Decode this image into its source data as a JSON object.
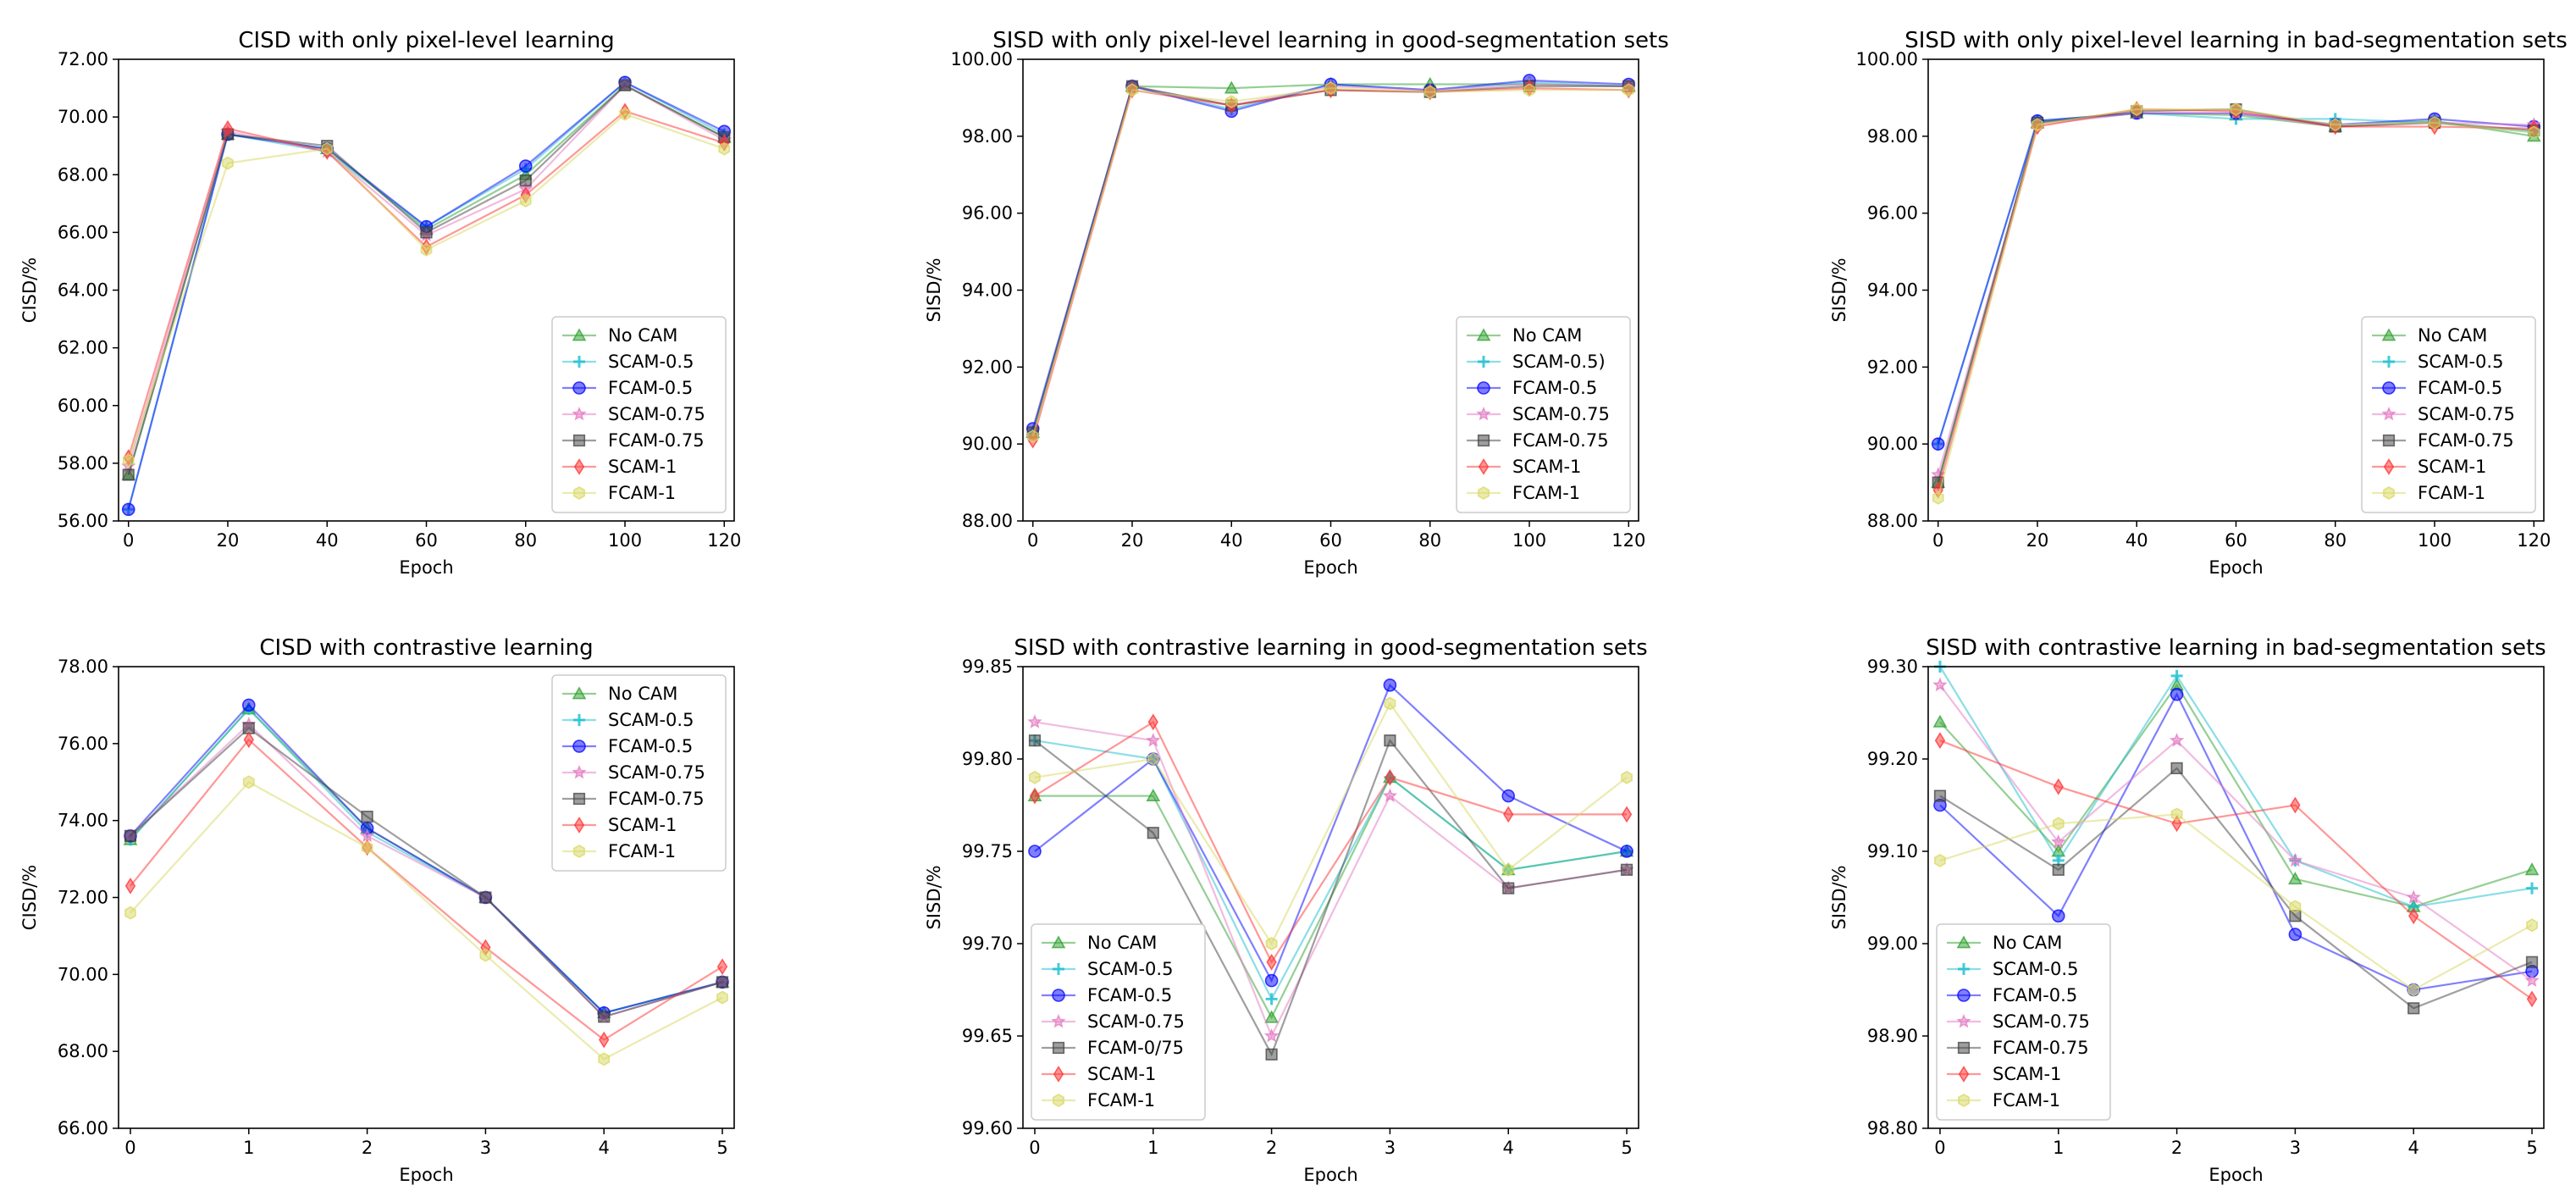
{
  "colors": {
    "No CAM": "#2ca02c",
    "SCAM-0.5": "#17becf",
    "FCAM-0.5": "#0000ff",
    "SCAM-0.75": "#e377c2",
    "FCAM-0.75": "#404040",
    "SCAM-1": "#ff3030",
    "FCAM-1": "#d8d860"
  },
  "chart_data": [
    {
      "type": "line",
      "title": "CISD with only pixel-level learning",
      "xlabel": "Epoch",
      "ylabel": "CISD/%",
      "x": [
        0,
        20,
        40,
        60,
        80,
        100,
        120
      ],
      "xlim": [
        -2,
        122
      ],
      "ylim": [
        56,
        72
      ],
      "yticks": [
        "56.00",
        "58.00",
        "60.00",
        "62.00",
        "64.00",
        "66.00",
        "68.00",
        "70.00",
        "72.00"
      ],
      "xticks": [
        "0",
        "20",
        "40",
        "60",
        "80",
        "100",
        "120"
      ],
      "legend": "lower-right",
      "series": [
        {
          "name": "No CAM",
          "marker": "triangle",
          "values": [
            57.6,
            69.4,
            68.9,
            66.1,
            68.0,
            71.1,
            69.3
          ]
        },
        {
          "name": "SCAM-0.5",
          "marker": "plus",
          "values": [
            56.4,
            69.4,
            68.8,
            66.2,
            68.2,
            71.2,
            69.4
          ]
        },
        {
          "name": "FCAM-0.5",
          "marker": "circle",
          "values": [
            56.4,
            69.4,
            68.9,
            66.2,
            68.3,
            71.2,
            69.5
          ]
        },
        {
          "name": "SCAM-0.75",
          "marker": "star",
          "values": [
            57.9,
            69.5,
            68.8,
            65.9,
            67.5,
            71.1,
            69.2
          ]
        },
        {
          "name": "FCAM-0.75",
          "marker": "square",
          "values": [
            57.6,
            69.4,
            69.0,
            66.0,
            67.8,
            71.1,
            69.3
          ]
        },
        {
          "name": "SCAM-1",
          "marker": "diamond",
          "values": [
            58.2,
            69.6,
            68.8,
            65.5,
            67.3,
            70.2,
            69.1
          ]
        },
        {
          "name": "FCAM-1",
          "marker": "hexagon",
          "values": [
            58.1,
            68.4,
            68.9,
            65.4,
            67.1,
            70.1,
            68.9
          ]
        }
      ]
    },
    {
      "type": "line",
      "title": "SISD with only pixel-level learning in good-segmentation sets",
      "xlabel": "Epoch",
      "ylabel": "SISD/%",
      "x": [
        0,
        20,
        40,
        60,
        80,
        100,
        120
      ],
      "xlim": [
        -2,
        122
      ],
      "ylim": [
        88,
        100
      ],
      "yticks": [
        "88.00",
        "90.00",
        "92.00",
        "94.00",
        "96.00",
        "98.00",
        "100.00"
      ],
      "xticks": [
        "0",
        "20",
        "40",
        "60",
        "80",
        "100",
        "120"
      ],
      "legend": "lower-right",
      "series": [
        {
          "name": "No CAM",
          "marker": "triangle",
          "values": [
            90.3,
            99.3,
            99.25,
            99.35,
            99.35,
            99.35,
            99.3
          ]
        },
        {
          "name": "SCAM-0.5)",
          "color_key": "SCAM-0.5",
          "marker": "plus",
          "values": [
            90.3,
            99.3,
            98.7,
            99.35,
            99.2,
            99.4,
            99.3
          ]
        },
        {
          "name": "FCAM-0.5",
          "marker": "circle",
          "values": [
            90.4,
            99.3,
            98.65,
            99.35,
            99.2,
            99.45,
            99.35
          ]
        },
        {
          "name": "SCAM-0.75",
          "marker": "star",
          "values": [
            90.2,
            99.3,
            98.8,
            99.3,
            99.2,
            99.35,
            99.3
          ]
        },
        {
          "name": "FCAM-0.75",
          "marker": "square",
          "values": [
            90.3,
            99.3,
            98.8,
            99.2,
            99.15,
            99.3,
            99.3
          ]
        },
        {
          "name": "SCAM-1",
          "marker": "diamond",
          "values": [
            90.1,
            99.2,
            98.8,
            99.2,
            99.15,
            99.25,
            99.2
          ]
        },
        {
          "name": "FCAM-1",
          "marker": "hexagon",
          "values": [
            90.2,
            99.2,
            98.9,
            99.25,
            99.15,
            99.2,
            99.2
          ]
        }
      ]
    },
    {
      "type": "line",
      "title": "SISD with only pixel-level learning in bad-segmentation sets",
      "xlabel": "Epoch",
      "ylabel": "SISD/%",
      "x": [
        0,
        20,
        40,
        60,
        80,
        100,
        120
      ],
      "xlim": [
        -2,
        122
      ],
      "ylim": [
        88,
        100
      ],
      "yticks": [
        "88.00",
        "90.00",
        "92.00",
        "94.00",
        "96.00",
        "98.00",
        "100.00"
      ],
      "xticks": [
        "0",
        "20",
        "40",
        "60",
        "80",
        "100",
        "120"
      ],
      "legend": "lower-right",
      "series": [
        {
          "name": "No CAM",
          "marker": "triangle",
          "values": [
            89.0,
            98.35,
            98.6,
            98.55,
            98.25,
            98.4,
            98.0
          ]
        },
        {
          "name": "SCAM-0.5",
          "marker": "plus",
          "values": [
            90.0,
            98.4,
            98.6,
            98.45,
            98.45,
            98.35,
            98.1
          ]
        },
        {
          "name": "FCAM-0.5",
          "marker": "circle",
          "values": [
            90.0,
            98.4,
            98.6,
            98.6,
            98.3,
            98.45,
            98.25
          ]
        },
        {
          "name": "SCAM-0.75",
          "marker": "star",
          "values": [
            89.2,
            98.3,
            98.6,
            98.6,
            98.25,
            98.35,
            98.3
          ]
        },
        {
          "name": "FCAM-0.75",
          "marker": "square",
          "values": [
            89.0,
            98.35,
            98.65,
            98.7,
            98.25,
            98.35,
            98.15
          ]
        },
        {
          "name": "SCAM-1",
          "marker": "diamond",
          "values": [
            88.8,
            98.25,
            98.7,
            98.65,
            98.25,
            98.25,
            98.2
          ]
        },
        {
          "name": "FCAM-1",
          "marker": "hexagon",
          "values": [
            88.6,
            98.3,
            98.7,
            98.7,
            98.3,
            98.35,
            98.1
          ]
        }
      ]
    },
    {
      "type": "line",
      "title": "CISD with contrastive learning",
      "xlabel": "Epoch",
      "ylabel": "CISD/%",
      "x": [
        0,
        1,
        2,
        3,
        4,
        5
      ],
      "xlim": [
        -0.1,
        5.1
      ],
      "ylim": [
        66,
        78
      ],
      "yticks": [
        "66.00",
        "68.00",
        "70.00",
        "72.00",
        "74.00",
        "76.00",
        "78.00"
      ],
      "xticks": [
        "0",
        "1",
        "2",
        "3",
        "4",
        "5"
      ],
      "legend": "upper-right",
      "series": [
        {
          "name": "No CAM",
          "marker": "triangle",
          "values": [
            73.5,
            76.9,
            73.8,
            72.0,
            69.0,
            69.8
          ]
        },
        {
          "name": "SCAM-0.5",
          "marker": "plus",
          "values": [
            73.5,
            76.9,
            73.7,
            72.0,
            69.0,
            69.8
          ]
        },
        {
          "name": "FCAM-0.5",
          "marker": "circle",
          "values": [
            73.6,
            77.0,
            73.8,
            72.0,
            69.0,
            69.8
          ]
        },
        {
          "name": "SCAM-0.75",
          "marker": "star",
          "values": [
            73.6,
            76.5,
            73.6,
            72.0,
            68.9,
            69.8
          ]
        },
        {
          "name": "FCAM-0.75",
          "marker": "square",
          "values": [
            73.6,
            76.4,
            74.1,
            72.0,
            68.9,
            69.8
          ]
        },
        {
          "name": "SCAM-1",
          "marker": "diamond",
          "values": [
            72.3,
            76.1,
            73.3,
            70.7,
            68.3,
            70.2
          ]
        },
        {
          "name": "FCAM-1",
          "marker": "hexagon",
          "values": [
            71.6,
            75.0,
            73.3,
            70.5,
            67.8,
            69.4
          ]
        }
      ]
    },
    {
      "type": "line",
      "title": "SISD with contrastive learning in good-segmentation sets",
      "xlabel": "Epoch",
      "ylabel": "SISD/%",
      "x": [
        0,
        1,
        2,
        3,
        4,
        5
      ],
      "xlim": [
        -0.1,
        5.1
      ],
      "ylim": [
        99.6,
        99.85
      ],
      "yticks": [
        "99.60",
        "99.65",
        "99.70",
        "99.75",
        "99.80",
        "99.85"
      ],
      "xticks": [
        "0",
        "1",
        "2",
        "3",
        "4",
        "5"
      ],
      "legend": "lower-left",
      "series": [
        {
          "name": "No CAM",
          "marker": "triangle",
          "values": [
            99.78,
            99.78,
            99.66,
            99.79,
            99.74,
            99.75
          ]
        },
        {
          "name": "SCAM-0.5",
          "marker": "plus",
          "values": [
            99.81,
            99.8,
            99.67,
            99.79,
            99.74,
            99.75
          ]
        },
        {
          "name": "FCAM-0.5",
          "marker": "circle",
          "values": [
            99.75,
            99.8,
            99.68,
            99.84,
            99.78,
            99.75
          ]
        },
        {
          "name": "SCAM-0.75",
          "marker": "star",
          "values": [
            99.82,
            99.81,
            99.65,
            99.78,
            99.73,
            99.74
          ]
        },
        {
          "name": "FCAM-0/75",
          "color_key": "FCAM-0.75",
          "marker": "square",
          "values": [
            99.81,
            99.76,
            99.64,
            99.81,
            99.73,
            99.74
          ]
        },
        {
          "name": "SCAM-1",
          "marker": "diamond",
          "values": [
            99.78,
            99.82,
            99.69,
            99.79,
            99.77,
            99.77
          ]
        },
        {
          "name": "FCAM-1",
          "marker": "hexagon",
          "values": [
            99.79,
            99.8,
            99.7,
            99.83,
            99.74,
            99.79
          ]
        }
      ]
    },
    {
      "type": "line",
      "title": "SISD with contrastive learning in bad-segmentation sets",
      "xlabel": "Epoch",
      "ylabel": "SISD/%",
      "x": [
        0,
        1,
        2,
        3,
        4,
        5
      ],
      "xlim": [
        -0.1,
        5.1
      ],
      "ylim": [
        98.8,
        99.3
      ],
      "yticks": [
        "98.80",
        "98.90",
        "99.00",
        "99.10",
        "99.20",
        "99.30"
      ],
      "xticks": [
        "0",
        "1",
        "2",
        "3",
        "4",
        "5"
      ],
      "legend": "lower-left",
      "series": [
        {
          "name": "No CAM",
          "marker": "triangle",
          "values": [
            99.24,
            99.1,
            99.28,
            99.07,
            99.04,
            99.08
          ]
        },
        {
          "name": "SCAM-0.5",
          "marker": "plus",
          "values": [
            99.3,
            99.09,
            99.29,
            99.09,
            99.04,
            99.06
          ]
        },
        {
          "name": "FCAM-0.5",
          "marker": "circle",
          "values": [
            99.15,
            99.03,
            99.27,
            99.01,
            98.95,
            98.97
          ]
        },
        {
          "name": "SCAM-0.75",
          "marker": "star",
          "values": [
            99.28,
            99.11,
            99.22,
            99.09,
            99.05,
            98.96
          ]
        },
        {
          "name": "FCAM-0.75",
          "marker": "square",
          "values": [
            99.16,
            99.08,
            99.19,
            99.03,
            98.93,
            98.98
          ]
        },
        {
          "name": "SCAM-1",
          "marker": "diamond",
          "values": [
            99.22,
            99.17,
            99.13,
            99.15,
            99.03,
            98.94
          ]
        },
        {
          "name": "FCAM-1",
          "marker": "hexagon",
          "values": [
            99.09,
            99.13,
            99.14,
            99.04,
            98.95,
            99.02
          ]
        }
      ]
    }
  ]
}
